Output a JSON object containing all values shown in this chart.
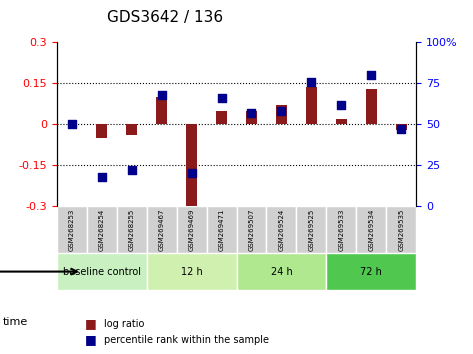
{
  "title": "GDS3642 / 136",
  "samples": [
    "GSM268253",
    "GSM268254",
    "GSM268255",
    "GSM269467",
    "GSM269469",
    "GSM269471",
    "GSM269507",
    "GSM269524",
    "GSM269525",
    "GSM269533",
    "GSM269534",
    "GSM269535"
  ],
  "log_ratio": [
    0.0,
    -0.05,
    -0.04,
    0.1,
    -0.3,
    0.05,
    0.05,
    0.07,
    0.135,
    0.02,
    0.13,
    -0.02
  ],
  "percentile_rank": [
    50,
    18,
    22,
    68,
    20,
    66,
    57,
    58,
    76,
    62,
    80,
    47
  ],
  "groups": [
    {
      "label": "baseline control",
      "start": 0,
      "end": 3,
      "color": "#90EE90"
    },
    {
      "label": "12 h",
      "start": 3,
      "end": 6,
      "color": "#b8f0a0"
    },
    {
      "label": "24 h",
      "start": 6,
      "end": 9,
      "color": "#90EE90"
    },
    {
      "label": "72 h",
      "start": 9,
      "end": 12,
      "color": "#50d060"
    }
  ],
  "ylim_left": [
    -0.3,
    0.3
  ],
  "ylim_right": [
    0,
    100
  ],
  "yticks_left": [
    -0.3,
    -0.15,
    0.0,
    0.15,
    0.3
  ],
  "yticks_right": [
    0,
    25,
    50,
    75,
    100
  ],
  "hlines": [
    0.15,
    0.0,
    -0.15
  ],
  "bar_color": "#8B1A1A",
  "dot_color": "#00008B",
  "bar_width": 0.35,
  "dot_size": 40
}
